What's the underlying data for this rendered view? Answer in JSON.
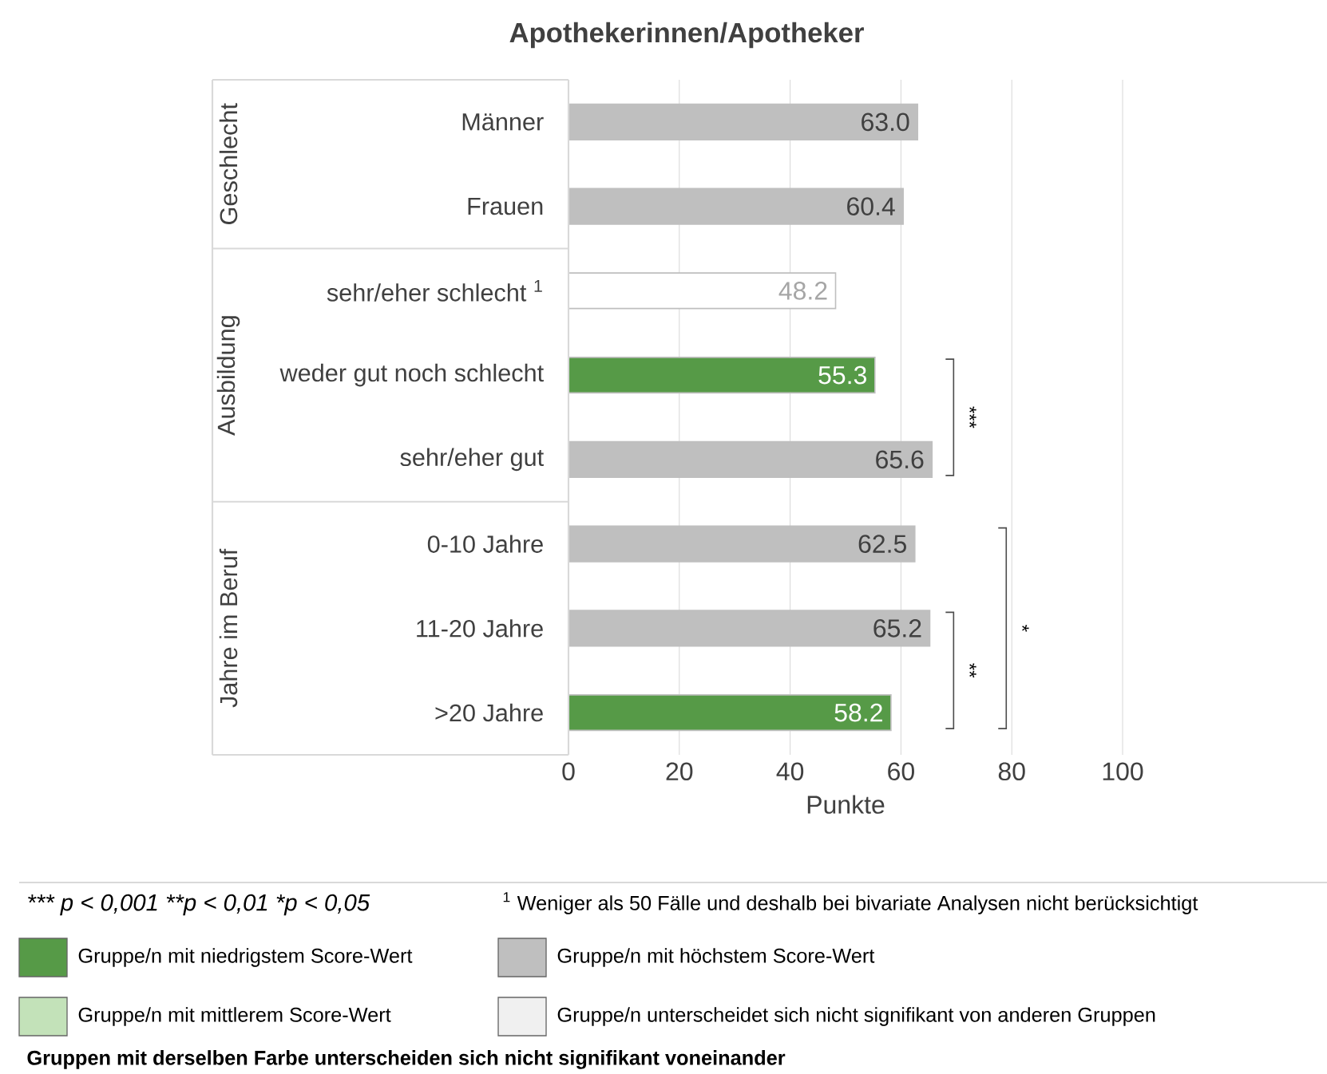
{
  "chart_data": {
    "type": "bar",
    "orientation": "horizontal",
    "title": "Apothekerinnen/Apotheker",
    "xlabel": "Punkte",
    "categories": [
      "Männer",
      "Frauen",
      "sehr/eher schlecht $^{1}$",
      "weder gut noch schlecht",
      "sehr/eher gut",
      "0-10 Jahre",
      "11-20 Jahre",
      ">20 Jahre"
    ],
    "series": [
      {
        "name": "Gruppe/n mit niedrigstem Score-Wert",
        "color": "#569a47",
        "values": [
          null,
          null,
          null,
          55.3,
          null,
          null,
          null,
          58.2
        ],
        "value_labels": [
          null,
          null,
          null,
          "55.3",
          null,
          null,
          null,
          "58.2"
        ]
      },
      {
        "name": "Gruppe/n mit höchstem Score-Wert",
        "color": "#bfbfbf",
        "values": [
          63.0,
          60.4,
          null,
          null,
          65.6,
          62.5,
          65.2,
          null
        ],
        "value_labels": [
          "63.0",
          "60.4",
          null,
          null,
          "65.6",
          "62.5",
          "65.2",
          null
        ]
      },
      {
        "name": "Gruppe/n mit mittlerem Score-Wert",
        "color": "#c3e2b9",
        "values": [
          null,
          null,
          null,
          null,
          null,
          null,
          null,
          null
        ]
      },
      {
        "name": "Gruppe/n unterscheidet sich nicht signifikant von anderen Gruppen",
        "color": "#f0f0f0",
        "values": [
          null,
          null,
          null,
          null,
          null,
          null,
          null,
          null
        ]
      },
      {
        "color": "#ffffff",
        "values": [
          null,
          null,
          48.2,
          null,
          null,
          null,
          null,
          null
        ],
        "value_labels": [
          null,
          null,
          "48.2",
          null,
          null,
          null,
          null,
          null
        ]
      }
    ],
    "xlim": [
      0,
      100
    ],
    "xticks": [
      0,
      20,
      40,
      60,
      80,
      100
    ],
    "grid": "x",
    "legend": "bottom",
    "annotations": [
      "Geschlecht",
      "Ausbildung",
      "Jahre im Beruf",
      "***",
      "**",
      "*",
      "*** p < 0,001  **p < 0,01  *p < 0,05",
      "$^{1}$ Weniger als 50 Fälle und deshalb bei bivariate Analysen nicht berücksichtigt",
      "Gruppen mit derselben Farbe unterscheiden sich nicht signifikant voneinander"
    ]
  }
}
